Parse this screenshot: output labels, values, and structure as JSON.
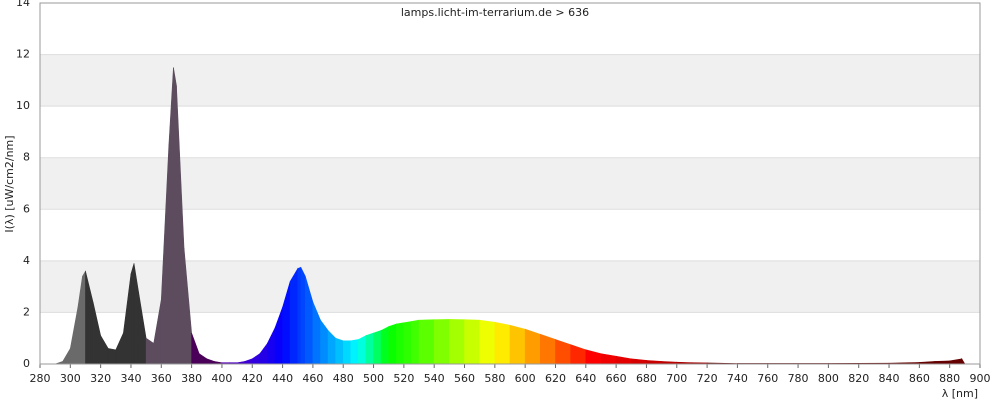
{
  "chart_data": {
    "type": "area",
    "title": "lamps.licht-im-terrarium.de > 636",
    "x_label": "λ [nm]",
    "y_label": "I(λ)  [uW/cm2/nm]",
    "x": [
      290,
      295,
      300,
      305,
      308,
      310,
      315,
      320,
      325,
      330,
      335,
      340,
      342,
      345,
      350,
      355,
      360,
      365,
      368,
      370,
      375,
      380,
      385,
      390,
      395,
      400,
      405,
      410,
      415,
      420,
      425,
      430,
      435,
      440,
      445,
      450,
      452,
      455,
      460,
      465,
      470,
      475,
      480,
      485,
      490,
      495,
      500,
      505,
      510,
      515,
      520,
      525,
      530,
      540,
      550,
      560,
      570,
      580,
      590,
      600,
      610,
      620,
      630,
      640,
      650,
      660,
      670,
      680,
      690,
      700,
      710,
      720,
      740,
      760,
      800,
      840,
      860,
      870,
      880,
      888,
      890
    ],
    "values": [
      0,
      0.1,
      0.6,
      2.2,
      3.4,
      3.6,
      2.4,
      1.1,
      0.6,
      0.55,
      1.2,
      3.5,
      3.9,
      2.8,
      1.0,
      0.8,
      2.5,
      8.5,
      11.5,
      10.8,
      4.5,
      1.2,
      0.4,
      0.2,
      0.1,
      0.05,
      0.05,
      0.05,
      0.1,
      0.2,
      0.4,
      0.8,
      1.4,
      2.2,
      3.2,
      3.7,
      3.75,
      3.4,
      2.4,
      1.7,
      1.3,
      1.0,
      0.9,
      0.9,
      0.95,
      1.1,
      1.2,
      1.3,
      1.45,
      1.55,
      1.6,
      1.65,
      1.7,
      1.72,
      1.73,
      1.72,
      1.7,
      1.62,
      1.5,
      1.35,
      1.15,
      0.95,
      0.75,
      0.55,
      0.4,
      0.3,
      0.2,
      0.14,
      0.1,
      0.07,
      0.05,
      0.04,
      0.02,
      0.02,
      0.02,
      0.03,
      0.06,
      0.1,
      0.12,
      0.2,
      0
    ],
    "xlim": [
      280,
      900
    ],
    "ylim": [
      0,
      14
    ],
    "xticks": [
      280,
      300,
      320,
      340,
      360,
      380,
      400,
      420,
      440,
      460,
      480,
      500,
      520,
      540,
      560,
      580,
      600,
      620,
      640,
      660,
      680,
      700,
      720,
      740,
      760,
      780,
      800,
      820,
      840,
      860,
      880,
      900
    ],
    "yticks": [
      0,
      2,
      4,
      6,
      8,
      10,
      12,
      14
    ],
    "grid": true
  }
}
